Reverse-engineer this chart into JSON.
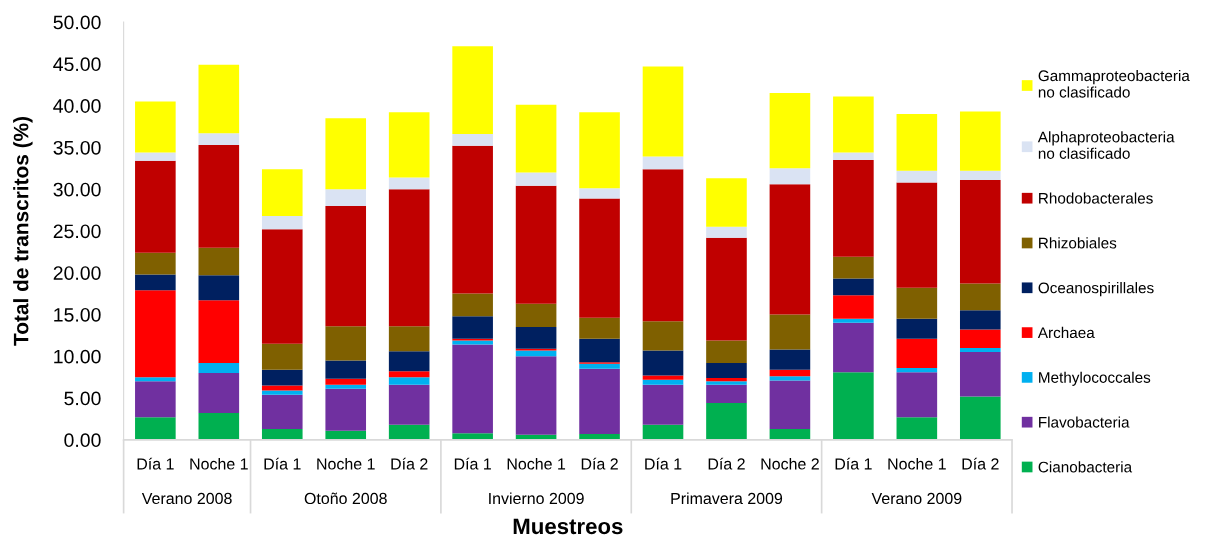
{
  "chart_data": {
    "type": "bar",
    "stacked": true,
    "ylabel": "Total de transcritos (%)",
    "xlabel": "Muestreos",
    "categories": [
      "Día 1",
      "Noche 1",
      "Día 1",
      "Noche 1",
      "Día 2",
      "Día 1",
      "Noche 1",
      "Día 2",
      "Día 1",
      "Día 2",
      "Noche 2",
      "Día 1",
      "Noche 1",
      "Día 2"
    ],
    "annotations": [
      "Verano 2008",
      "Otoño 2008",
      "Invierno 2009",
      "Primavera 2009",
      "Verano 2009"
    ],
    "series": [
      {
        "name": "Cianobacteria",
        "color": "#00b050",
        "values": [
          2.7,
          3.2,
          1.3,
          1.1,
          1.8,
          0.8,
          0.6,
          0.7,
          1.8,
          4.4,
          1.3,
          8.1,
          2.7,
          5.2
        ]
      },
      {
        "name": "Flavobacteria",
        "color": "#7030a0",
        "values": [
          4.3,
          4.8,
          4.1,
          5.0,
          4.8,
          10.6,
          9.4,
          7.8,
          4.8,
          2.2,
          5.8,
          5.9,
          5.4,
          5.3
        ]
      },
      {
        "name": "Methylococcales",
        "color": "#00b0f0",
        "values": [
          0.5,
          1.2,
          0.5,
          0.5,
          0.9,
          0.5,
          0.7,
          0.6,
          0.6,
          0.4,
          0.5,
          0.5,
          0.5,
          0.5
        ]
      },
      {
        "name": "Archaea",
        "color": "#ff0000",
        "values": [
          10.4,
          7.5,
          0.6,
          0.7,
          0.7,
          0.2,
          0.2,
          0.2,
          0.5,
          0.4,
          0.8,
          2.8,
          3.5,
          2.2
        ]
      },
      {
        "name": "Oceanospirillales",
        "color": "#002060",
        "values": [
          1.9,
          3.0,
          1.9,
          2.2,
          2.4,
          2.7,
          2.6,
          2.8,
          3.0,
          1.8,
          2.4,
          2.0,
          2.4,
          2.3
        ]
      },
      {
        "name": "Rhizobiales",
        "color": "#7f6000",
        "values": [
          2.6,
          3.3,
          3.1,
          4.1,
          3.0,
          2.7,
          2.8,
          2.5,
          3.5,
          2.7,
          4.2,
          2.6,
          3.7,
          3.2
        ]
      },
      {
        "name": "Rhodobacterales",
        "color": "#c00000",
        "values": [
          11.0,
          12.3,
          13.7,
          14.4,
          16.4,
          17.7,
          14.1,
          14.3,
          18.2,
          12.3,
          15.6,
          11.6,
          12.6,
          12.4
        ]
      },
      {
        "name": "Alphaproteobacteria no clasificado",
        "color": "#dae3f3",
        "values": [
          1.0,
          1.4,
          1.6,
          2.0,
          1.4,
          1.4,
          1.6,
          1.2,
          1.5,
          1.3,
          1.9,
          0.9,
          1.4,
          1.1
        ]
      },
      {
        "name": "Gammaproteobacteria no clasificado",
        "color": "#ffff00",
        "values": [
          6.1,
          8.2,
          5.6,
          8.5,
          7.8,
          10.5,
          8.1,
          9.1,
          10.8,
          5.8,
          9.0,
          6.7,
          6.8,
          7.1
        ]
      }
    ],
    "ylim": [
      0,
      50
    ],
    "yticks": [
      {
        "value": 0,
        "label": "0.00"
      },
      {
        "value": 5,
        "label": "5.00"
      },
      {
        "value": 10,
        "label": "10.00"
      },
      {
        "value": 15,
        "label": "15.00"
      },
      {
        "value": 20,
        "label": "20.00"
      },
      {
        "value": 25,
        "label": "25.00"
      },
      {
        "value": 30,
        "label": "30.00"
      },
      {
        "value": 35,
        "label": "35.00"
      },
      {
        "value": 40,
        "label": "40.00"
      },
      {
        "value": 45,
        "label": "45.00"
      },
      {
        "value": 50,
        "label": "50.00"
      }
    ],
    "legend": "right"
  }
}
